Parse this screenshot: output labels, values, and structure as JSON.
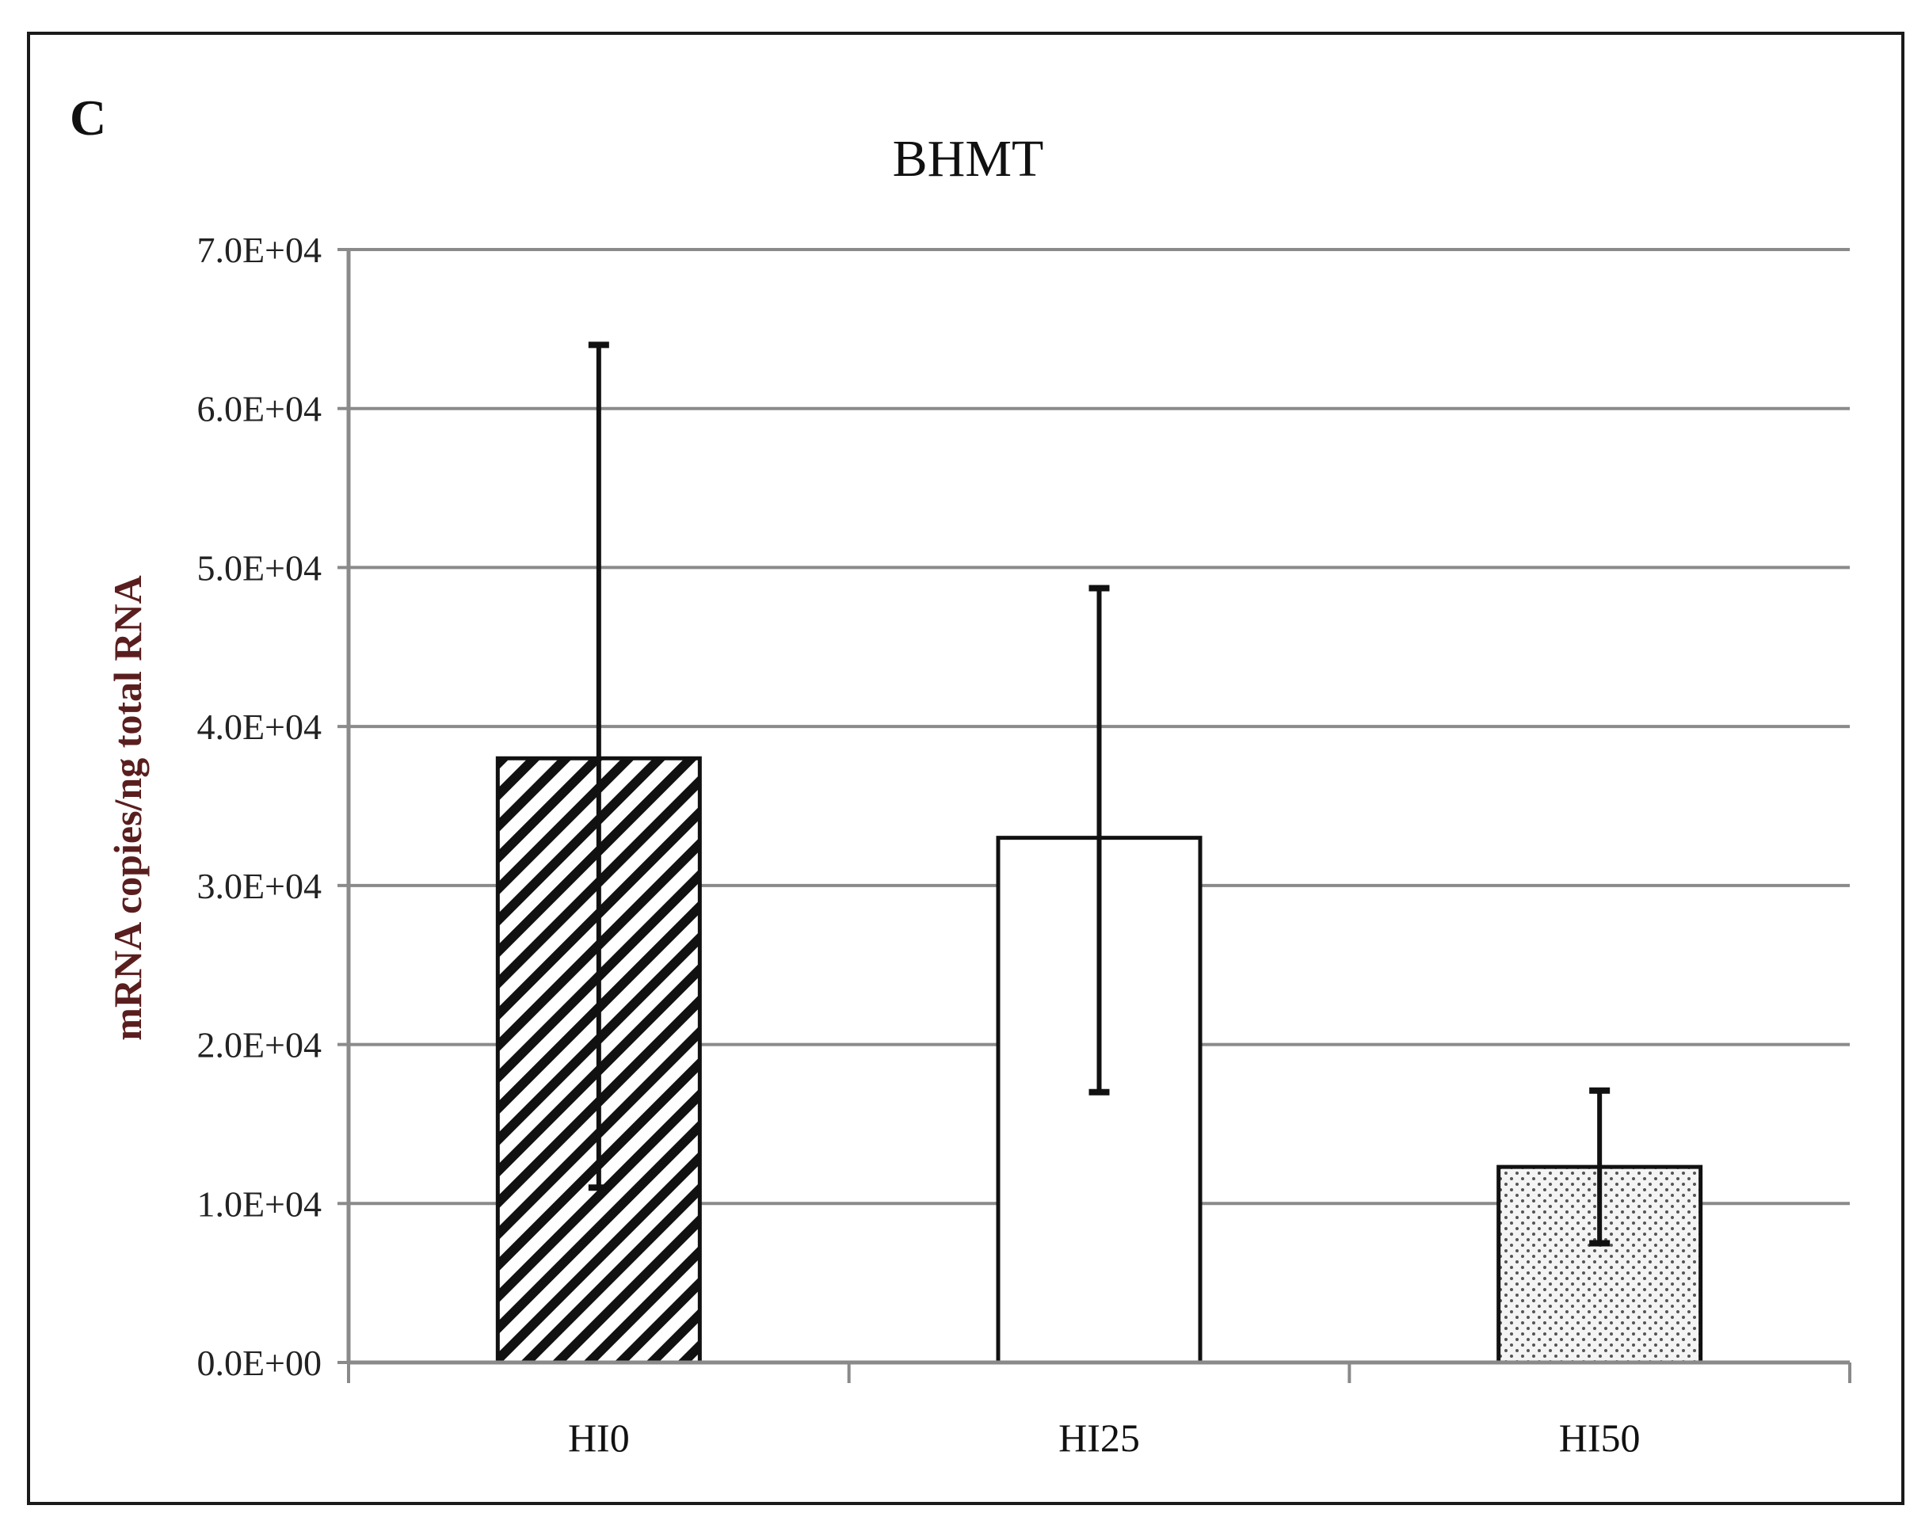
{
  "panel_label": "C",
  "chart_data": {
    "type": "bar",
    "title": "BHMT",
    "ylabel": "mRNA copies/ng total RNA",
    "xlabel": "",
    "categories": [
      "HI0",
      "HI25",
      "HI50"
    ],
    "values": [
      38000,
      33000,
      12300
    ],
    "error_low": [
      11000,
      17000,
      7500
    ],
    "error_high": [
      64000,
      48700,
      17100
    ],
    "bar_patterns": [
      "diagonal-stripes",
      "none",
      "dots"
    ],
    "ylim": [
      0,
      70000
    ],
    "yticks": [
      0,
      10000,
      20000,
      30000,
      40000,
      50000,
      60000,
      70000
    ],
    "ytick_labels": [
      "0.0E+00",
      "1.0E+04",
      "2.0E+04",
      "3.0E+04",
      "4.0E+04",
      "5.0E+04",
      "6.0E+04",
      "7.0E+04"
    ],
    "grid": true,
    "legend": "none"
  }
}
